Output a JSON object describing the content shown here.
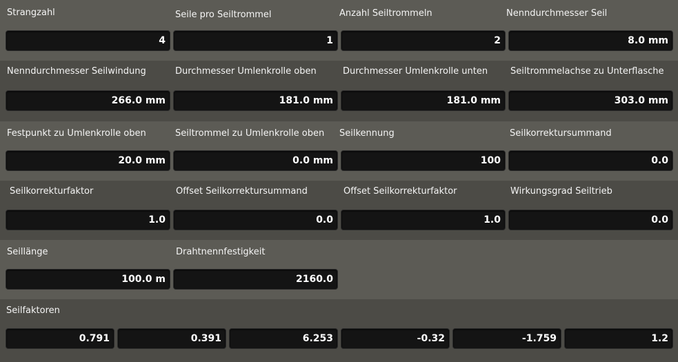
{
  "rows": [
    [
      {
        "label": "Strangzahl",
        "value": "4"
      },
      {
        "label": "Seile pro Seiltrommel",
        "value": "1"
      },
      {
        "label": "Anzahl Seiltrommeln",
        "value": "2"
      },
      {
        "label": "Nenndurchmesser Seil",
        "value": "8.0 mm"
      }
    ],
    [
      {
        "label": "Nenndurchmesser Seilwindung",
        "value": "266.0 mm"
      },
      {
        "label": "Durchmesser Umlenkrolle oben",
        "value": "181.0 mm"
      },
      {
        "label": "Durchmesser Umlenkrolle unten",
        "value": "181.0 mm"
      },
      {
        "label": "Seiltrommelachse zu Unterflasche",
        "value": "303.0 mm"
      }
    ],
    [
      {
        "label": "Festpunkt zu Umlenkrolle oben",
        "value": "20.0 mm"
      },
      {
        "label": "Seiltrommel zu Umlenkrolle oben",
        "value": "0.0 mm"
      },
      {
        "label": "Seilkennung",
        "value": "100"
      },
      {
        "label": "Seilkorrektursummand",
        "value": "0.0"
      }
    ],
    [
      {
        "label": "Seilkorrekturfaktor",
        "value": "1.0"
      },
      {
        "label": "Offset Seilkorrektursummand",
        "value": "0.0"
      },
      {
        "label": "Offset Seilkorrekturfaktor",
        "value": "1.0"
      },
      {
        "label": "Wirkungsgrad Seiltrieb",
        "value": "0.0"
      }
    ],
    [
      {
        "label": "Seillänge",
        "value": "100.0 m"
      },
      {
        "label": "Drahtnennfestigkeit",
        "value": "2160.0"
      }
    ]
  ],
  "seilfaktoren": {
    "label": "Seilfaktoren",
    "values": [
      "0.791",
      "0.391",
      "6.253",
      "-0.32",
      "-1.759",
      "1.2"
    ]
  }
}
